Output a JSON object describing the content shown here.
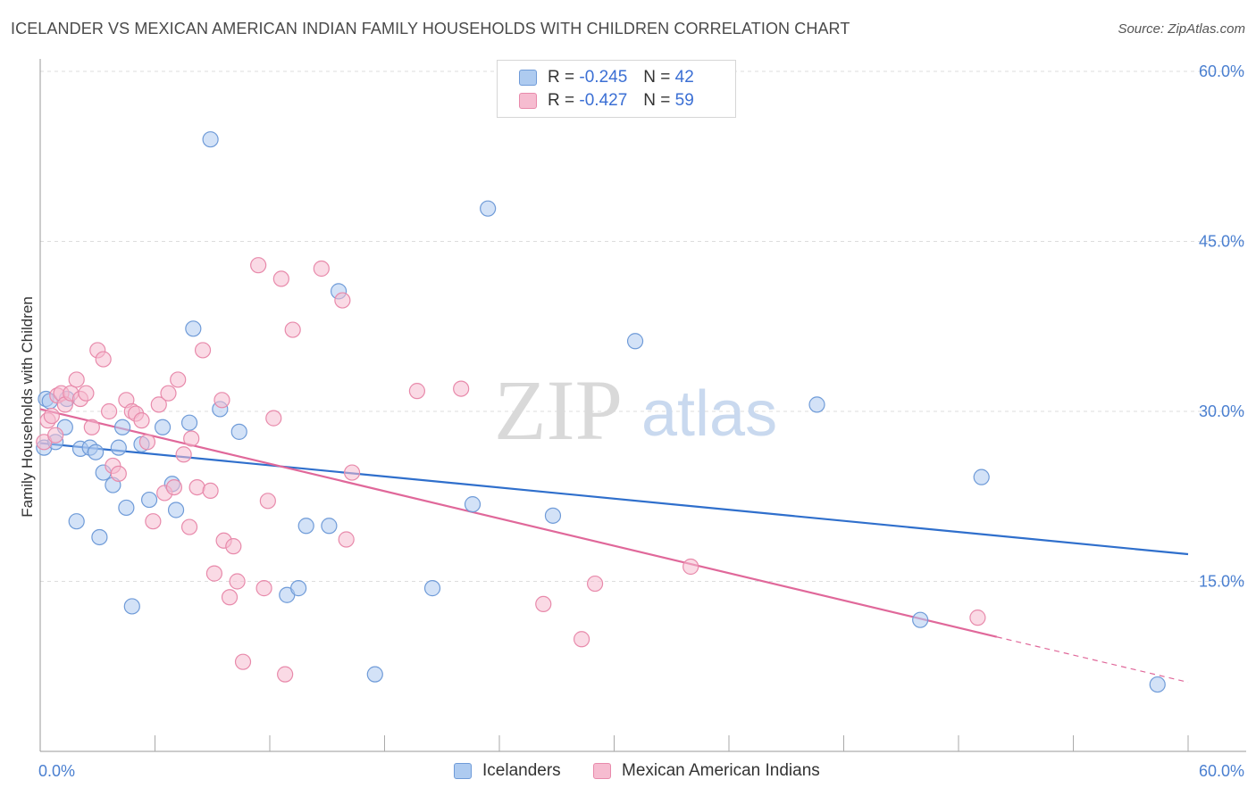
{
  "title": "ICELANDER VS MEXICAN AMERICAN INDIAN FAMILY HOUSEHOLDS WITH CHILDREN CORRELATION CHART",
  "source": "Source: ZipAtlas.com",
  "watermark": {
    "zip": "ZIP",
    "atlas": "atlas"
  },
  "legend": {
    "rows": [
      {
        "r_label": "R = ",
        "r_value": "-0.245",
        "n_label": "N = ",
        "n_value": "42"
      },
      {
        "r_label": "R = ",
        "r_value": "-0.427",
        "n_label": "N = ",
        "n_value": "59"
      }
    ]
  },
  "bottom_legend": [
    "Icelanders",
    "Mexican American Indians"
  ],
  "colors": {
    "blue_fill": "#aecbf0",
    "blue_stroke": "#6f9bd8",
    "blue_line": "#2f6fcc",
    "pink_fill": "#f6bcd0",
    "pink_stroke": "#e88aab",
    "pink_line": "#e0689a",
    "tick_text": "#4a7fd0",
    "grid": "#dddddd"
  },
  "chart_data": {
    "type": "scatter",
    "title": "ICELANDER VS MEXICAN AMERICAN INDIAN FAMILY HOUSEHOLDS WITH CHILDREN CORRELATION CHART",
    "xlabel": "",
    "ylabel": "Family Households with Children",
    "xlim": [
      0,
      60
    ],
    "ylim": [
      0,
      60
    ],
    "x_tick_labels": [
      "0.0%",
      "60.0%"
    ],
    "y_tick_labels": [
      "15.0%",
      "30.0%",
      "45.0%",
      "60.0%"
    ],
    "y_ticks": [
      15,
      30,
      45,
      60
    ],
    "grid": true,
    "legend_position": "top-center",
    "series": [
      {
        "name": "Icelanders",
        "r": -0.245,
        "n": 42,
        "trend": {
          "x": [
            0,
            60
          ],
          "y": [
            27.2,
            17.4
          ]
        },
        "points": [
          [
            0.2,
            26.8
          ],
          [
            0.3,
            31.1
          ],
          [
            0.8,
            27.3
          ],
          [
            1.3,
            28.6
          ],
          [
            1.4,
            31.1
          ],
          [
            1.9,
            20.3
          ],
          [
            2.1,
            26.7
          ],
          [
            2.6,
            26.8
          ],
          [
            3.1,
            18.9
          ],
          [
            3.3,
            24.6
          ],
          [
            3.8,
            23.5
          ],
          [
            4.1,
            26.8
          ],
          [
            4.3,
            28.6
          ],
          [
            4.5,
            21.5
          ],
          [
            4.8,
            12.8
          ],
          [
            5.3,
            27.1
          ],
          [
            5.7,
            22.2
          ],
          [
            6.4,
            28.6
          ],
          [
            6.9,
            23.6
          ],
          [
            7.1,
            21.3
          ],
          [
            7.8,
            29.0
          ],
          [
            8.0,
            37.3
          ],
          [
            8.9,
            54.0
          ],
          [
            9.4,
            30.2
          ],
          [
            10.4,
            28.2
          ],
          [
            12.9,
            13.8
          ],
          [
            13.5,
            14.4
          ],
          [
            13.9,
            19.9
          ],
          [
            15.1,
            19.9
          ],
          [
            15.6,
            40.6
          ],
          [
            17.5,
            6.8
          ],
          [
            20.5,
            14.4
          ],
          [
            22.6,
            21.8
          ],
          [
            23.4,
            47.9
          ],
          [
            26.8,
            20.8
          ],
          [
            31.1,
            36.2
          ],
          [
            40.6,
            30.6
          ],
          [
            46.0,
            11.6
          ],
          [
            49.2,
            24.2
          ],
          [
            58.4,
            5.9
          ],
          [
            0.5,
            30.9
          ],
          [
            2.9,
            26.4
          ]
        ]
      },
      {
        "name": "Mexican American Indians",
        "r": -0.427,
        "n": 59,
        "trend": {
          "x": [
            0,
            50
          ],
          "y": [
            30.2,
            10.1
          ]
        },
        "trend_dashed": {
          "x": [
            50,
            60
          ],
          "y": [
            10.1,
            6.1
          ]
        },
        "points": [
          [
            0.2,
            27.3
          ],
          [
            0.4,
            29.2
          ],
          [
            0.6,
            29.6
          ],
          [
            0.9,
            31.4
          ],
          [
            1.1,
            31.6
          ],
          [
            1.3,
            30.6
          ],
          [
            1.6,
            31.6
          ],
          [
            1.9,
            32.8
          ],
          [
            2.1,
            31.1
          ],
          [
            2.4,
            31.6
          ],
          [
            2.7,
            28.6
          ],
          [
            3.0,
            35.4
          ],
          [
            3.3,
            34.6
          ],
          [
            3.6,
            30.0
          ],
          [
            3.8,
            25.2
          ],
          [
            4.1,
            24.5
          ],
          [
            4.5,
            31.0
          ],
          [
            4.8,
            30.0
          ],
          [
            5.0,
            29.8
          ],
          [
            5.3,
            29.2
          ],
          [
            5.6,
            27.3
          ],
          [
            5.9,
            20.3
          ],
          [
            6.2,
            30.6
          ],
          [
            6.5,
            22.8
          ],
          [
            6.7,
            31.6
          ],
          [
            7.0,
            23.3
          ],
          [
            7.2,
            32.8
          ],
          [
            7.5,
            26.2
          ],
          [
            7.8,
            19.8
          ],
          [
            7.9,
            27.6
          ],
          [
            8.2,
            23.3
          ],
          [
            8.5,
            35.4
          ],
          [
            8.9,
            23.0
          ],
          [
            9.1,
            15.7
          ],
          [
            9.5,
            31.0
          ],
          [
            9.6,
            18.6
          ],
          [
            9.9,
            13.6
          ],
          [
            10.1,
            18.1
          ],
          [
            10.3,
            15.0
          ],
          [
            10.6,
            7.9
          ],
          [
            11.4,
            42.9
          ],
          [
            11.7,
            14.4
          ],
          [
            11.9,
            22.1
          ],
          [
            12.2,
            29.4
          ],
          [
            12.6,
            41.7
          ],
          [
            12.8,
            6.8
          ],
          [
            13.2,
            37.2
          ],
          [
            14.7,
            42.6
          ],
          [
            15.8,
            39.8
          ],
          [
            16.0,
            18.7
          ],
          [
            16.3,
            24.6
          ],
          [
            19.7,
            31.8
          ],
          [
            22.0,
            32.0
          ],
          [
            26.3,
            13.0
          ],
          [
            28.3,
            9.9
          ],
          [
            29.0,
            14.8
          ],
          [
            34.0,
            16.3
          ],
          [
            49.0,
            11.8
          ],
          [
            0.8,
            27.9
          ]
        ]
      }
    ]
  }
}
